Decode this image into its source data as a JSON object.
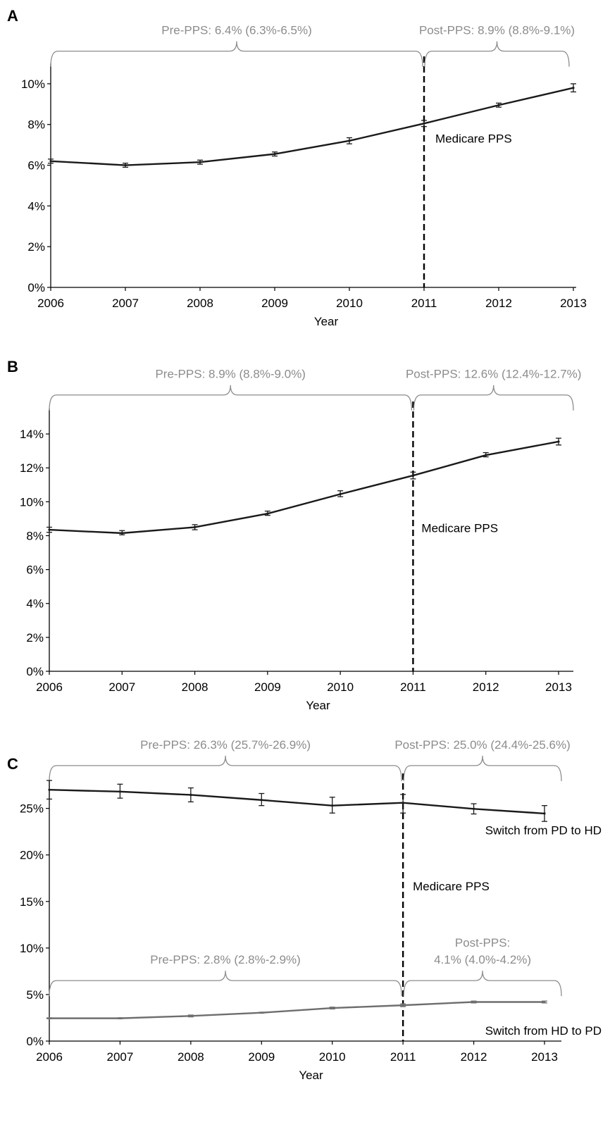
{
  "chart_data": [
    {
      "type": "line",
      "panel": "A",
      "xlabel": "Year",
      "ylabel": "",
      "x": [
        2006,
        2007,
        2008,
        2009,
        2010,
        2011,
        2012,
        2013
      ],
      "x_tick_labels": [
        "2006",
        "2007",
        "2008",
        "2009",
        "2010",
        "2011",
        "2012",
        "2013"
      ],
      "ylim": [
        0,
        11
      ],
      "y_ticks": [
        0,
        2,
        4,
        6,
        8,
        10
      ],
      "y_tick_labels": [
        "0%",
        "2%",
        "4%",
        "6%",
        "8%",
        "10%"
      ],
      "series": [
        {
          "color": "#1a1a1a",
          "values": [
            6.2,
            6.0,
            6.15,
            6.55,
            7.2,
            8.05,
            8.95,
            9.8
          ],
          "err_low": [
            6.1,
            5.9,
            6.05,
            6.45,
            7.05,
            7.9,
            8.85,
            9.6
          ],
          "err_high": [
            6.3,
            6.1,
            6.25,
            6.65,
            7.35,
            8.2,
            9.05,
            10.0
          ]
        }
      ],
      "vline": {
        "x": 2011,
        "label": "Medicare PPS"
      },
      "brackets": [
        {
          "x_start": 2006,
          "x_end": 2011,
          "y": 11.6,
          "label": "Pre-PPS: 6.4% (6.3%-6.5%)"
        },
        {
          "x_start": 2011,
          "x_end": 2013,
          "y": 11.6,
          "label": "Post-PPS: 8.9% (8.8%-9.1%)"
        }
      ],
      "grid": false
    },
    {
      "type": "line",
      "panel": "B",
      "xlabel": "Year",
      "ylabel": "",
      "x": [
        2006,
        2007,
        2008,
        2009,
        2010,
        2011,
        2012,
        2013
      ],
      "x_tick_labels": [
        "2006",
        "2007",
        "2008",
        "2009",
        "2010",
        "2011",
        "2012",
        "2013"
      ],
      "ylim": [
        0,
        15.5
      ],
      "y_ticks": [
        0,
        2,
        4,
        6,
        8,
        10,
        12,
        14
      ],
      "y_tick_labels": [
        "0%",
        "2%",
        "4%",
        "6%",
        "8%",
        "10%",
        "12%",
        "14%"
      ],
      "series": [
        {
          "color": "#1a1a1a",
          "values": [
            8.35,
            8.15,
            8.5,
            9.3,
            10.45,
            11.55,
            12.75,
            13.55
          ],
          "err_low": [
            8.2,
            8.05,
            8.35,
            9.2,
            10.3,
            11.35,
            12.65,
            13.35
          ],
          "err_high": [
            8.5,
            8.3,
            8.65,
            9.45,
            10.65,
            11.75,
            12.9,
            13.75
          ]
        }
      ],
      "vline": {
        "x": 2011,
        "label": "Medicare PPS"
      },
      "brackets": [
        {
          "x_start": 2006,
          "x_end": 2011,
          "y": 16.3,
          "label": "Pre-PPS: 8.9% (8.8%-9.0%)"
        },
        {
          "x_start": 2011,
          "x_end": 2013,
          "y": 16.3,
          "label": "Post-PPS: 12.6% (12.4%-12.7%)"
        }
      ],
      "grid": false
    },
    {
      "type": "line",
      "panel": "C",
      "xlabel": "Year",
      "ylabel": "",
      "x": [
        2006,
        2007,
        2008,
        2009,
        2010,
        2011,
        2012,
        2013
      ],
      "x_tick_labels": [
        "2006",
        "2007",
        "2008",
        "2009",
        "2010",
        "2011",
        "2012",
        "2013"
      ],
      "ylim": [
        0,
        28
      ],
      "y_ticks": [
        0,
        5,
        10,
        15,
        20,
        25
      ],
      "y_tick_labels": [
        "0%",
        "5%",
        "10%",
        "15%",
        "20%",
        "25%"
      ],
      "series": [
        {
          "name": "Switch from PD to HD",
          "color": "#1a1a1a",
          "values": [
            27.0,
            26.8,
            26.45,
            25.9,
            25.3,
            25.6,
            24.95,
            24.45
          ],
          "err_low": [
            26.0,
            26.1,
            25.7,
            25.3,
            24.5,
            24.5,
            24.4,
            23.6
          ],
          "err_high": [
            28.0,
            27.6,
            27.2,
            26.6,
            26.2,
            26.5,
            25.5,
            25.3
          ]
        },
        {
          "name": "Switch from HD to PD",
          "color": "#6e6e6e",
          "values": [
            2.45,
            2.45,
            2.7,
            3.05,
            3.55,
            3.85,
            4.2,
            4.2
          ],
          "err_low": [
            2.4,
            2.4,
            2.6,
            3.0,
            3.45,
            3.7,
            4.1,
            4.1
          ],
          "err_high": [
            2.5,
            2.5,
            2.8,
            3.1,
            3.65,
            4.0,
            4.3,
            4.3
          ]
        }
      ],
      "vline": {
        "x": 2011,
        "label": "Medicare PPS"
      },
      "brackets": [
        {
          "x_start": 2006,
          "x_end": 2011,
          "y": 29.6,
          "label": "Pre-PPS: 26.3% (25.7%-26.9%)"
        },
        {
          "x_start": 2011,
          "x_end": 2013,
          "y": 29.6,
          "label": "Post-PPS: 25.0% (24.4%-25.6%)"
        },
        {
          "x_start": 2006,
          "x_end": 2011,
          "y": 6.5,
          "label": "Pre-PPS: 2.8% (2.8%-2.9%)"
        },
        {
          "x_start": 2011,
          "x_end": 2013,
          "y": 6.5,
          "label_lines": [
            "Post-PPS:",
            "4.1% (4.0%-4.2%)"
          ]
        }
      ],
      "grid": false
    }
  ]
}
